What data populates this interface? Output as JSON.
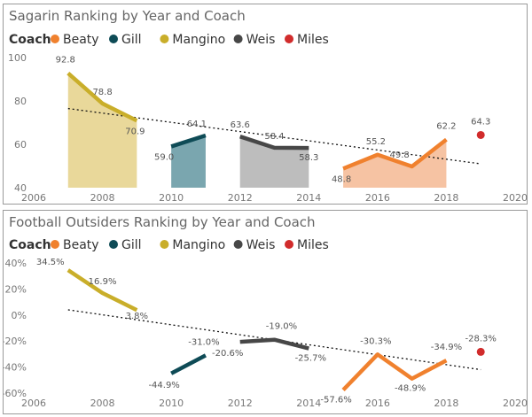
{
  "chart_data": [
    {
      "type": "line",
      "title": "Sagarin Ranking by Year and Coach",
      "legend_title": "Coach",
      "legend_position": "top-left",
      "x_range": [
        2006,
        2020
      ],
      "x_ticks": [
        "2006",
        "2008",
        "2010",
        "2012",
        "2014",
        "2016",
        "2018",
        "2020"
      ],
      "y_range": [
        40,
        100
      ],
      "y_ticks": [
        "40",
        "60",
        "80",
        "100"
      ],
      "trendline": {
        "style": "dotted",
        "start": [
          2007,
          76.5
        ],
        "end": [
          2019,
          51
        ]
      },
      "series": [
        {
          "name": "Beaty",
          "color": "#f0812e",
          "area": true,
          "area_color": "#f6c3a3",
          "x": [
            2015,
            2016,
            2017,
            2018
          ],
          "y": [
            48.8,
            55.2,
            49.8,
            62.2
          ],
          "labels": [
            "48.8",
            "55.2",
            "49.8",
            "62.2"
          ]
        },
        {
          "name": "Gill",
          "color": "#0e4b56",
          "area": true,
          "area_color": "#7aa6af",
          "x": [
            2010,
            2011
          ],
          "y": [
            59.0,
            64.1
          ],
          "labels": [
            "59.0",
            "64.1"
          ]
        },
        {
          "name": "Mangino",
          "color": "#c9ae2a",
          "area": true,
          "area_color": "#e9d89a",
          "x": [
            2007,
            2008,
            2009
          ],
          "y": [
            92.8,
            78.8,
            70.9
          ],
          "labels": [
            "92.8",
            "78.8",
            "70.9"
          ]
        },
        {
          "name": "Weis",
          "color": "#474747",
          "area": true,
          "area_color": "#bdbdbd",
          "x": [
            2012,
            2013,
            2014
          ],
          "y": [
            63.6,
            58.4,
            58.3
          ],
          "labels": [
            "63.6",
            "58.4",
            "58.3"
          ]
        },
        {
          "name": "Miles",
          "color": "#d12c2c",
          "area": false,
          "point": true,
          "x": [
            2019
          ],
          "y": [
            64.3
          ],
          "labels": [
            "64.3"
          ]
        }
      ]
    },
    {
      "type": "line",
      "title": "Football Outsiders Ranking by Year and Coach",
      "legend_title": "Coach",
      "legend_position": "top-left",
      "x_range": [
        2006,
        2020
      ],
      "x_ticks": [
        "2006",
        "2008",
        "2010",
        "2012",
        "2014",
        "2016",
        "2018",
        "2020"
      ],
      "y_range": [
        -60,
        40
      ],
      "y_ticks": [
        "-60%",
        "-40%",
        "-20%",
        "0%",
        "20%",
        "40%"
      ],
      "trendline": {
        "style": "dotted",
        "start": [
          2007,
          4
        ],
        "end": [
          2019,
          -42
        ]
      },
      "series": [
        {
          "name": "Beaty",
          "color": "#f0812e",
          "x": [
            2015,
            2016,
            2017,
            2018
          ],
          "y": [
            -57.6,
            -30.3,
            -48.9,
            -34.9
          ],
          "labels": [
            "-57.6%",
            "-30.3%",
            "-48.9%",
            "-34.9%"
          ]
        },
        {
          "name": "Gill",
          "color": "#0e4b56",
          "x": [
            2010,
            2011
          ],
          "y": [
            -44.9,
            -31.0
          ],
          "labels": [
            "-44.9%",
            "-31.0%"
          ]
        },
        {
          "name": "Mangino",
          "color": "#c9ae2a",
          "x": [
            2007,
            2008,
            2009
          ],
          "y": [
            34.5,
            16.9,
            3.8
          ],
          "labels": [
            "34.5%",
            "16.9%",
            "3.8%"
          ]
        },
        {
          "name": "Weis",
          "color": "#474747",
          "x": [
            2012,
            2013,
            2014
          ],
          "y": [
            -20.6,
            -19.0,
            -25.7
          ],
          "labels": [
            "-20.6%",
            "-19.0%",
            "-25.7%"
          ]
        },
        {
          "name": "Miles",
          "color": "#d12c2c",
          "point": true,
          "x": [
            2019
          ],
          "y": [
            -28.3
          ],
          "labels": [
            "-28.3%"
          ]
        }
      ]
    }
  ]
}
